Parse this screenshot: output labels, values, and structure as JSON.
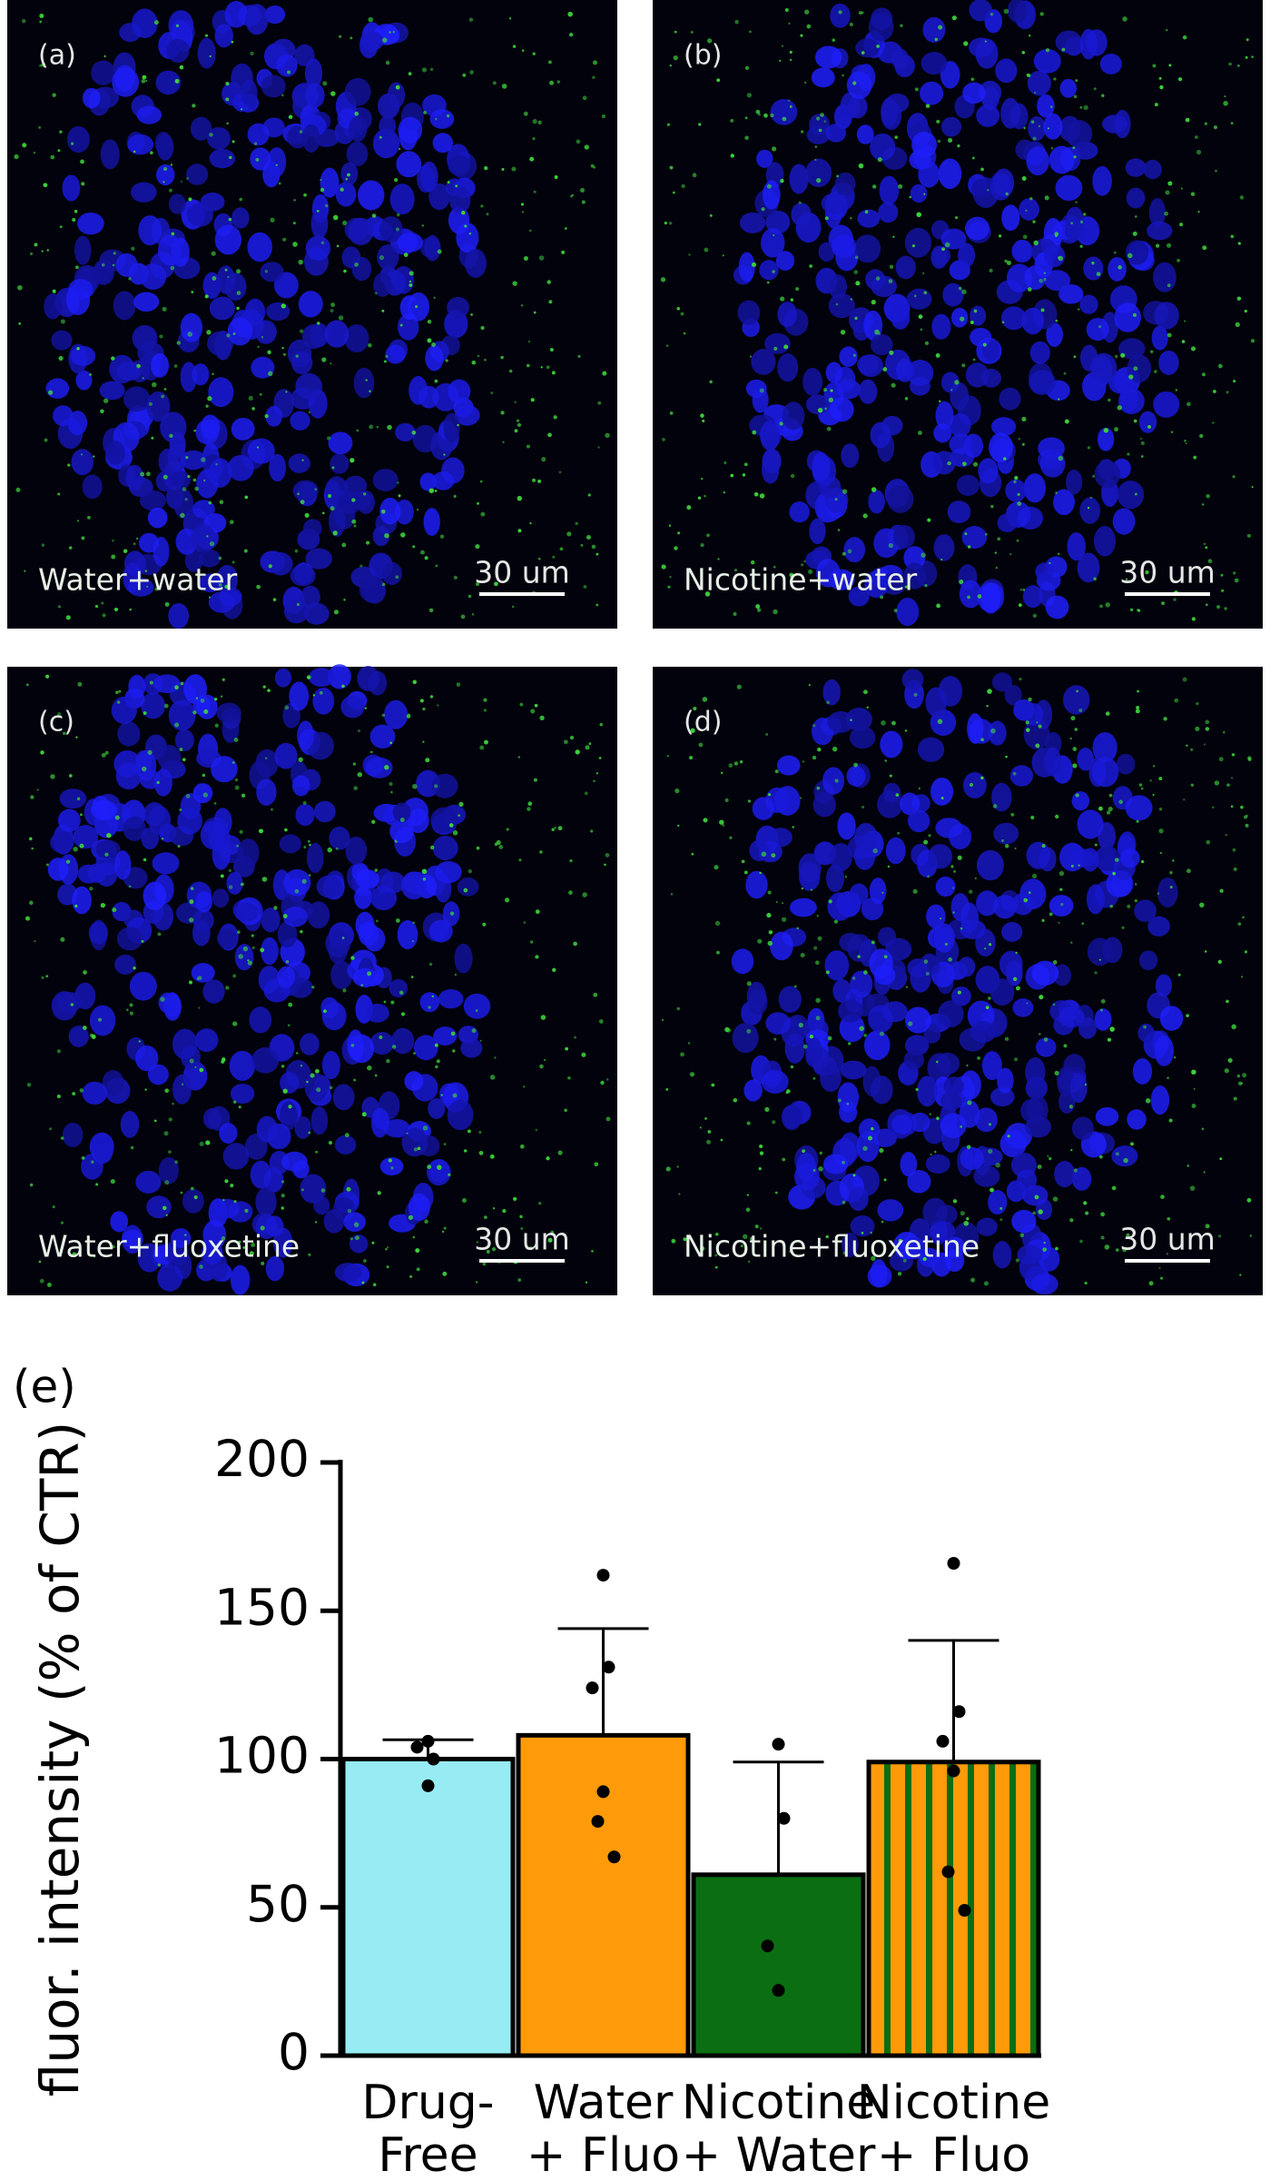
{
  "panels": [
    {
      "label": "(a)",
      "caption": "Water+water",
      "scale": "30 um"
    },
    {
      "label": "(b)",
      "caption": "Nicotine+water",
      "scale": "30 um"
    },
    {
      "label": "(c)",
      "caption": "Water+fluoxetine",
      "scale": "30 um"
    },
    {
      "label": "(d)",
      "caption": "Nicotine+fluoxetine",
      "scale": "30 um"
    }
  ],
  "chart_data": {
    "type": "bar",
    "panel_label": "(e)",
    "ylabel": "fluor. intensity (% of CTR)",
    "categories": [
      [
        "Drug-",
        "Free"
      ],
      [
        "Water",
        "+ Fluo"
      ],
      [
        "Nicotine",
        "+ Water"
      ],
      [
        "Nicotine",
        "+ Fluo"
      ]
    ],
    "values": [
      100,
      108,
      61,
      99
    ],
    "errors": [
      6.5,
      36,
      38,
      41
    ],
    "points": [
      [
        91,
        100,
        104,
        106
      ],
      [
        162,
        131,
        124,
        89,
        79,
        67
      ],
      [
        105,
        80,
        37,
        22
      ],
      [
        166,
        116,
        106,
        96,
        62,
        49
      ]
    ],
    "colors": [
      "#97ebf3",
      "#ff9a0a",
      "#0b6e12",
      "#ff9a0a"
    ],
    "hatch": [
      false,
      false,
      false,
      true
    ],
    "hatch_color": "#0b6e12",
    "ylim": [
      0,
      200
    ],
    "yticks": [
      0,
      50,
      100,
      150,
      200
    ]
  }
}
